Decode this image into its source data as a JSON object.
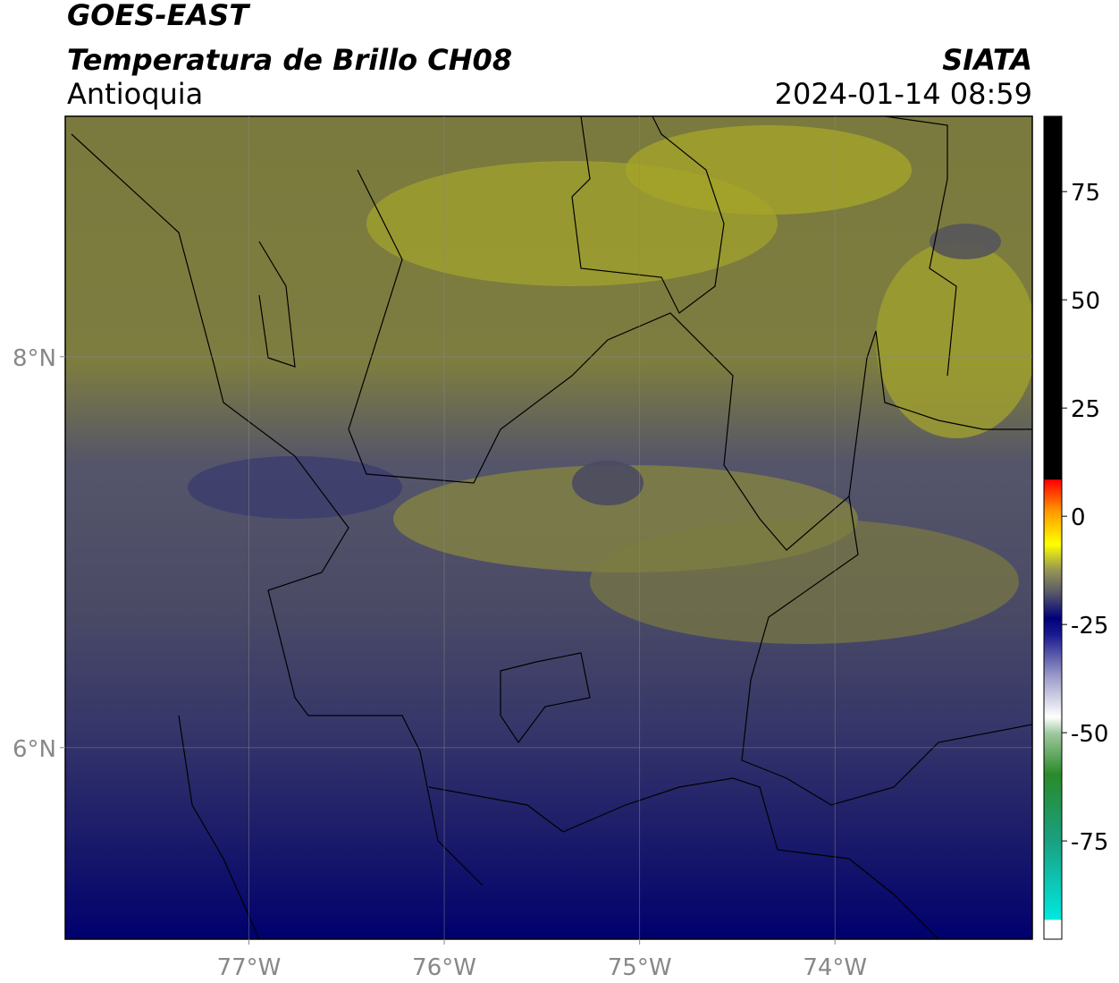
{
  "title": "GOES-EAST",
  "subtitle": "Temperatura de Brillo CH08",
  "region": "Antioquia",
  "source": "SIATA",
  "datetime": "2024-01-14 08:59",
  "map": {
    "xlim": [
      -77.94,
      -72.99
    ],
    "ylim": [
      5.02,
      9.23
    ],
    "xticks": [
      {
        "value": -77,
        "label": "77°W"
      },
      {
        "value": -76,
        "label": "76°W"
      },
      {
        "value": -75,
        "label": "75°W"
      },
      {
        "value": -74,
        "label": "74°W"
      }
    ],
    "yticks": [
      {
        "value": 8,
        "label": "8°N"
      },
      {
        "value": 6,
        "label": "6°N"
      }
    ],
    "grid": true
  },
  "colorbar": {
    "lim": [
      -97.7,
      92.4
    ],
    "ticks": [
      75,
      50,
      25,
      0,
      -25,
      -50,
      -75
    ]
  }
}
